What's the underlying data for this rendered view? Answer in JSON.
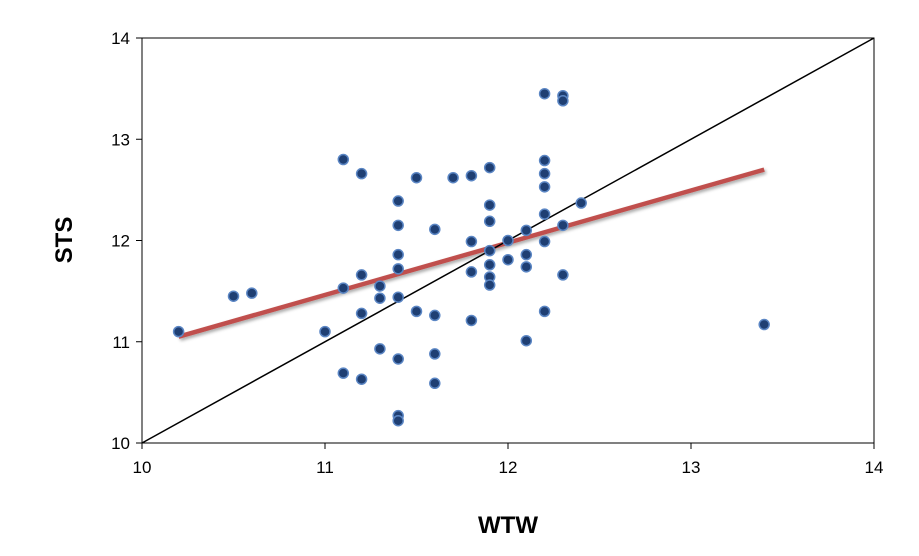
{
  "chart_data": {
    "type": "scatter",
    "title": "",
    "xlabel": "WTW",
    "ylabel": "STS",
    "xlim": [
      10,
      14
    ],
    "ylim": [
      10,
      14
    ],
    "x_ticks": [
      "10",
      "11",
      "12",
      "13",
      "14"
    ],
    "y_ticks": [
      "10",
      "11",
      "12",
      "13",
      "14"
    ],
    "grid": false,
    "legend": "none",
    "colors": {
      "point_fill": "#1f3f73",
      "point_edge": "#5b86c4",
      "trend_line": "#c0504d",
      "identity_line": "#000000"
    },
    "series": [
      {
        "kind": "points",
        "points": [
          [
            10.2,
            11.1
          ],
          [
            10.5,
            11.45
          ],
          [
            10.6,
            11.48
          ],
          [
            11.0,
            11.1
          ],
          [
            11.1,
            12.8
          ],
          [
            11.1,
            11.53
          ],
          [
            11.1,
            10.69
          ],
          [
            11.2,
            12.66
          ],
          [
            11.2,
            11.66
          ],
          [
            11.2,
            11.28
          ],
          [
            11.2,
            10.63
          ],
          [
            11.3,
            11.55
          ],
          [
            11.3,
            11.43
          ],
          [
            11.3,
            10.93
          ],
          [
            11.4,
            12.39
          ],
          [
            11.4,
            12.15
          ],
          [
            11.4,
            11.86
          ],
          [
            11.4,
            11.72
          ],
          [
            11.4,
            11.44
          ],
          [
            11.4,
            10.83
          ],
          [
            11.4,
            10.27
          ],
          [
            11.4,
            10.22
          ],
          [
            11.5,
            12.62
          ],
          [
            11.5,
            11.3
          ],
          [
            11.6,
            12.11
          ],
          [
            11.6,
            11.26
          ],
          [
            11.6,
            10.88
          ],
          [
            11.6,
            10.59
          ],
          [
            11.7,
            12.62
          ],
          [
            11.8,
            12.64
          ],
          [
            11.8,
            11.99
          ],
          [
            11.8,
            11.69
          ],
          [
            11.8,
            11.21
          ],
          [
            11.9,
            12.72
          ],
          [
            11.9,
            12.35
          ],
          [
            11.9,
            12.19
          ],
          [
            11.9,
            11.9
          ],
          [
            11.9,
            11.76
          ],
          [
            11.9,
            11.64
          ],
          [
            11.9,
            11.56
          ],
          [
            12.0,
            12.0
          ],
          [
            12.0,
            11.81
          ],
          [
            12.1,
            12.1
          ],
          [
            12.1,
            11.86
          ],
          [
            12.1,
            11.74
          ],
          [
            12.1,
            11.01
          ],
          [
            12.2,
            13.45
          ],
          [
            12.2,
            12.79
          ],
          [
            12.2,
            12.66
          ],
          [
            12.2,
            12.53
          ],
          [
            12.2,
            12.26
          ],
          [
            12.2,
            11.99
          ],
          [
            12.2,
            11.3
          ],
          [
            12.3,
            13.43
          ],
          [
            12.3,
            13.38
          ],
          [
            12.3,
            12.15
          ],
          [
            12.3,
            11.66
          ],
          [
            12.4,
            12.37
          ],
          [
            13.4,
            11.17
          ]
        ]
      },
      {
        "kind": "trend-line",
        "points": [
          [
            10.2,
            11.05
          ],
          [
            13.4,
            12.7
          ]
        ]
      },
      {
        "kind": "identity-line",
        "points": [
          [
            10,
            10
          ],
          [
            14,
            14
          ]
        ]
      }
    ]
  }
}
